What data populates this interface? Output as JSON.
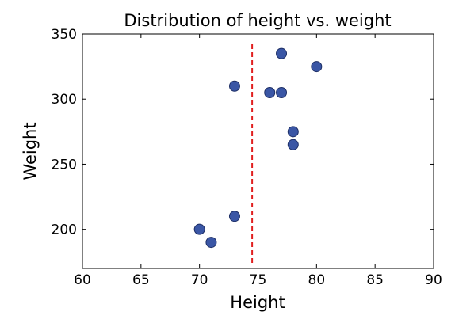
{
  "chart_data": {
    "type": "scatter",
    "title": "Distribution of height vs. weight",
    "xlabel": "Height",
    "ylabel": "Weight",
    "xlim": [
      60,
      90
    ],
    "ylim": [
      170,
      350
    ],
    "xticks": [
      60,
      65,
      70,
      75,
      80,
      85,
      90
    ],
    "yticks": [
      200,
      250,
      300,
      350
    ],
    "grid": false,
    "points": [
      {
        "x": 70,
        "y": 200
      },
      {
        "x": 71,
        "y": 190
      },
      {
        "x": 73,
        "y": 210
      },
      {
        "x": 73,
        "y": 310
      },
      {
        "x": 76,
        "y": 305
      },
      {
        "x": 77,
        "y": 305
      },
      {
        "x": 77,
        "y": 335
      },
      {
        "x": 78,
        "y": 275
      },
      {
        "x": 78,
        "y": 265
      },
      {
        "x": 80,
        "y": 325
      }
    ],
    "vline": {
      "x": 74.5,
      "style": "dashed"
    },
    "colors": {
      "points": "#3a56a5",
      "vline": "#e01f1f"
    }
  }
}
